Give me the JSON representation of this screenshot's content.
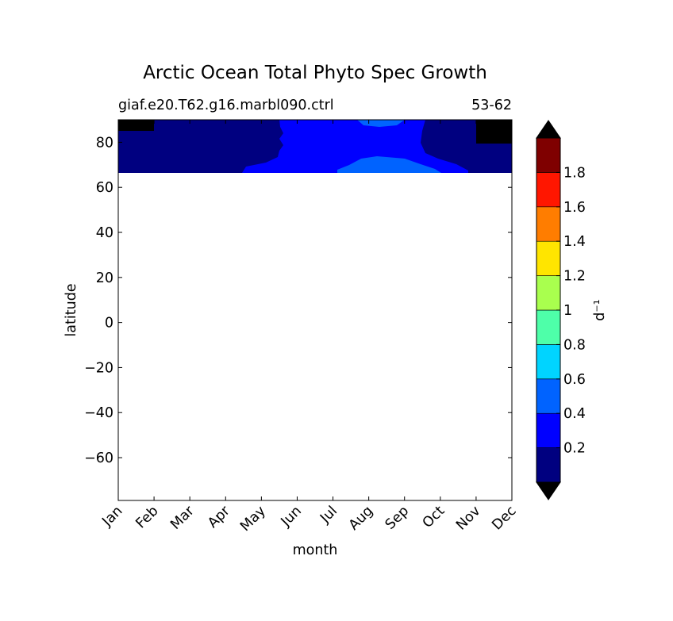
{
  "chart_data": {
    "type": "contourf",
    "title": "Arctic Ocean Total Phyto Spec Growth",
    "subtitle_left": "giaf.e20.T62.g16.marbl090.ctrl",
    "subtitle_right": "53-62",
    "xlabel": "month",
    "ylabel": "latitude",
    "x_ticks": [
      "Jan",
      "Feb",
      "Mar",
      "Apr",
      "May",
      "Jun",
      "Jul",
      "Aug",
      "Sep",
      "Oct",
      "Nov",
      "Dec"
    ],
    "ylim": [
      -79,
      90
    ],
    "y_ticks": [
      80,
      60,
      40,
      20,
      0,
      -20,
      -40,
      -60
    ],
    "y_tick_labels": [
      "80",
      "60",
      "40",
      "20",
      "0",
      "−20",
      "−40",
      "−60"
    ],
    "data_lat_range": [
      66.5,
      90
    ],
    "colorbar": {
      "label": "d⁻¹",
      "boundaries": [
        0,
        0.2,
        0.4,
        0.6,
        0.8,
        1.0,
        1.2,
        1.4,
        1.6,
        1.8,
        2.0
      ],
      "colors": [
        "#000080",
        "#0000ff",
        "#0063ff",
        "#00d4ff",
        "#4effa9",
        "#a9ff4e",
        "#ffe500",
        "#ff7d00",
        "#ff1600",
        "#7f0000"
      ],
      "under_color": "#000000",
      "over_color": "#000000",
      "tick_values": [
        0.2,
        0.4,
        0.6,
        0.8,
        1.0,
        1.2,
        1.4,
        1.6,
        1.8
      ],
      "tick_labels": [
        "0.2",
        "0.4",
        "0.6",
        "0.8",
        "1",
        "1.2",
        "1.4",
        "1.6",
        "1.8"
      ]
    },
    "regions": [
      {
        "level": "below 0",
        "color": "#000000",
        "months": [
          "Jan"
        ],
        "lat_range": [
          85,
          90
        ]
      },
      {
        "level": "below 0",
        "color": "#000000",
        "months": [
          "Dec"
        ],
        "lat_range": [
          80,
          90
        ]
      },
      {
        "level": "0-0.2",
        "color": "#000080",
        "months": [
          "Jan",
          "Feb",
          "Mar",
          "Apr",
          "May",
          "Oct",
          "Nov",
          "Dec"
        ],
        "lat_range": [
          66.5,
          90
        ]
      },
      {
        "level": "0.2-0.4",
        "color": "#0000ff",
        "months": [
          "May",
          "Jun",
          "Jul",
          "Aug",
          "Sep",
          "Oct"
        ],
        "lat_range": [
          66.5,
          90
        ]
      },
      {
        "level": "0.4-0.6",
        "color": "#0063ff",
        "months": [
          "Aug",
          "Sep"
        ],
        "lat_range": [
          66.5,
          74
        ]
      },
      {
        "level": "0.4-0.6",
        "color": "#0063ff",
        "months": [
          "Aug"
        ],
        "lat_range": [
          88,
          90
        ]
      }
    ]
  }
}
